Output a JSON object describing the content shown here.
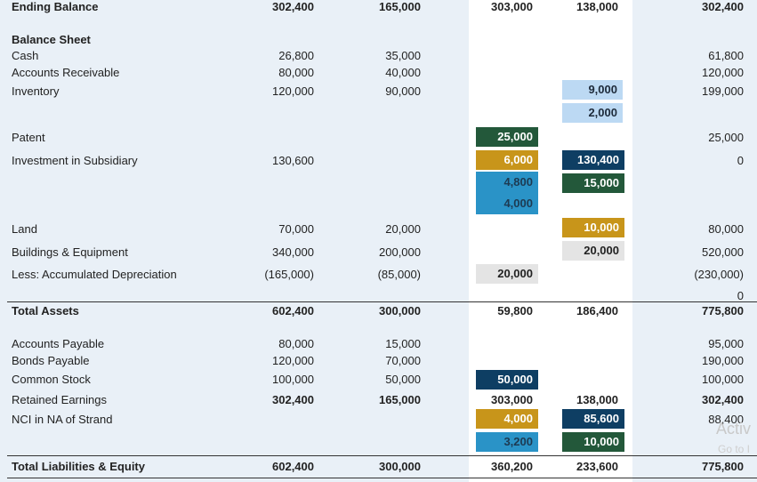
{
  "top_row": {
    "label": "Ending Balance",
    "peanut": "302,400",
    "strand": "165,000",
    "dr": "303,000",
    "cr": "138,000",
    "consolidated": "302,400"
  },
  "section_title": "Balance Sheet",
  "rows": {
    "cash": {
      "label": "Cash",
      "peanut": "26,800",
      "strand": "35,000",
      "consolidated": "61,800"
    },
    "ar": {
      "label": "Accounts Receivable",
      "peanut": "80,000",
      "strand": "40,000",
      "consolidated": "120,000"
    },
    "inventory": {
      "label": "Inventory",
      "peanut": "120,000",
      "strand": "90,000",
      "cr1": "9,000",
      "cr2": "2,000",
      "consolidated": "199,000"
    },
    "patent": {
      "label": "Patent",
      "dr": "25,000",
      "consolidated": "25,000"
    },
    "investment": {
      "label": "Investment in Subsidiary",
      "peanut": "130,600",
      "dr1": "6,000",
      "dr2": "4,800",
      "dr3": "4,000",
      "cr1": "130,400",
      "cr2": "15,000",
      "consolidated": "0"
    },
    "land": {
      "label": "Land",
      "peanut": "70,000",
      "strand": "20,000",
      "cr": "10,000",
      "consolidated": "80,000"
    },
    "buildings": {
      "label": "Buildings & Equipment",
      "peanut": "340,000",
      "strand": "200,000",
      "cr": "20,000",
      "consolidated": "520,000"
    },
    "accum_dep": {
      "label": "Less: Accumulated Depreciation",
      "peanut": "(165,000)",
      "strand": "(85,000)",
      "dr": "20,000",
      "consolidated1": "(230,000)",
      "consolidated2": "0"
    },
    "total_assets": {
      "label": "Total Assets",
      "peanut": "602,400",
      "strand": "300,000",
      "dr": "59,800",
      "cr": "186,400",
      "consolidated": "775,800"
    },
    "ap": {
      "label": "Accounts Payable",
      "peanut": "80,000",
      "strand": "15,000",
      "consolidated": "95,000"
    },
    "bonds": {
      "label": "Bonds Payable",
      "peanut": "120,000",
      "strand": "70,000",
      "consolidated": "190,000"
    },
    "common": {
      "label": "Common Stock",
      "peanut": "100,000",
      "strand": "50,000",
      "dr": "50,000",
      "consolidated": "100,000"
    },
    "retained": {
      "label": "Retained Earnings",
      "peanut": "302,400",
      "strand": "165,000",
      "dr": "303,000",
      "cr": "138,000",
      "consolidated": "302,400"
    },
    "nci": {
      "label": "NCI in NA of Strand",
      "dr1": "4,000",
      "dr2": "3,200",
      "cr1": "85,600",
      "cr2": "10,000",
      "consolidated": "88,400"
    },
    "total_le": {
      "label": "Total Liabilities & Equity",
      "peanut": "602,400",
      "strand": "300,000",
      "dr": "360,200",
      "cr": "233,600",
      "consolidated": "775,800"
    }
  },
  "watermark": {
    "line1": "Activ",
    "line2": "Go to I"
  },
  "colors": {
    "green": "#23583a",
    "gold": "#c8951a",
    "blue": "#2a93c7",
    "navy": "#0e3e63",
    "light_blue": "#bcd9f3",
    "grey": "#e4e4e4",
    "band": "#e9f0f7"
  }
}
